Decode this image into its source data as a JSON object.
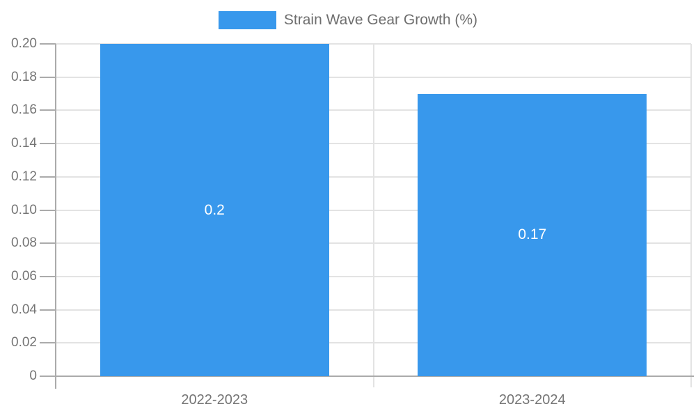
{
  "chart_data": {
    "type": "bar",
    "title": "",
    "legend": {
      "label": "Strain Wave Gear Growth (%)",
      "position": "top"
    },
    "categories": [
      "2022-2023",
      "2023-2024"
    ],
    "series": [
      {
        "name": "Strain Wave Gear Growth (%)",
        "values": [
          0.2,
          0.17
        ]
      }
    ],
    "value_labels": [
      "0.2",
      "0.17"
    ],
    "y_ticks": [
      {
        "value": 0,
        "label": "0"
      },
      {
        "value": 0.02,
        "label": "0.02"
      },
      {
        "value": 0.04,
        "label": "0.04"
      },
      {
        "value": 0.06,
        "label": "0.06"
      },
      {
        "value": 0.08,
        "label": "0.08"
      },
      {
        "value": 0.1,
        "label": "0.10"
      },
      {
        "value": 0.12,
        "label": "0.12"
      },
      {
        "value": 0.14,
        "label": "0.14"
      },
      {
        "value": 0.16,
        "label": "0.16"
      },
      {
        "value": 0.18,
        "label": "0.18"
      },
      {
        "value": 0.2,
        "label": "0.20"
      }
    ],
    "ylim": [
      0,
      0.2
    ],
    "xlabel": "",
    "ylabel": "",
    "grid": true,
    "colors": {
      "bar": "#3898ec",
      "grid": "#e3e3e3",
      "axis": "#ababab",
      "tick_text": "#757575",
      "bar_label_text": "#ffffff"
    }
  }
}
